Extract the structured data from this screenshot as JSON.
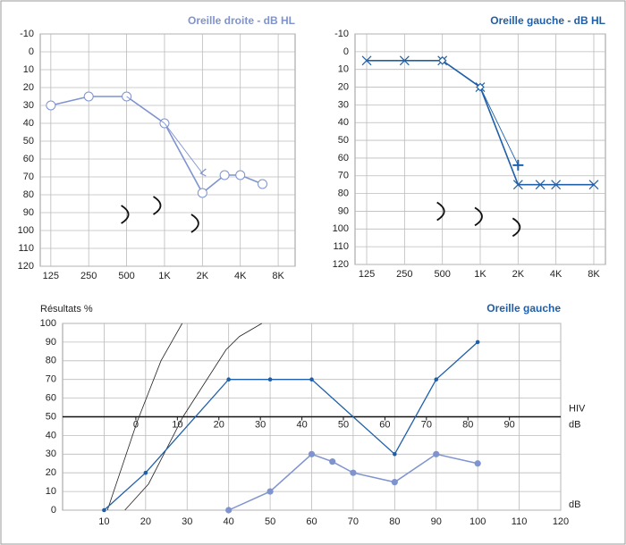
{
  "chart_data": [
    {
      "type": "line",
      "title": "Oreille droite - dB HL",
      "title_color": "#7f93cf",
      "xscale": "log",
      "xlim": [
        103,
        10900
      ],
      "xticks": [
        125,
        250,
        500,
        {
          "value": 1000,
          "label": "1K"
        },
        {
          "value": 2000,
          "label": "2K"
        },
        {
          "value": 4000,
          "label": "4K"
        },
        {
          "value": 8000,
          "label": "8K"
        }
      ],
      "ylim": [
        -10,
        120
      ],
      "yreverse": true,
      "yticks": [
        -10,
        0,
        10,
        20,
        30,
        40,
        50,
        60,
        70,
        80,
        90,
        100,
        110,
        120
      ],
      "grid": true,
      "series": [
        {
          "color": "#7f93cf",
          "x": [
            125,
            250,
            500,
            1000,
            2000,
            3000,
            4000,
            6000
          ],
          "values": [
            30,
            25,
            25,
            40,
            79,
            69,
            69,
            74
          ],
          "marker": "circle",
          "line": true,
          "width": 1.6
        },
        {
          "color": "#7f93cf",
          "x": [
            500,
            1000,
            2000
          ],
          "values": [
            25,
            40,
            68
          ],
          "markers": [
            "none",
            "none",
            "caret"
          ],
          "line": true,
          "width": 0.9
        },
        {
          "color": "#111111",
          "x": [
            500,
            900,
            1800
          ],
          "values": [
            91,
            86,
            96
          ],
          "marker": "arc",
          "line": false
        }
      ]
    },
    {
      "type": "line",
      "title": "Oreille gauche - dB HL",
      "title_color": "#1f5fa8",
      "xscale": "log",
      "xlim": [
        101,
        9900
      ],
      "xticks": [
        125,
        250,
        500,
        {
          "value": 1000,
          "label": "1K"
        },
        {
          "value": 2000,
          "label": "2K"
        },
        {
          "value": 4000,
          "label": "4K"
        },
        {
          "value": 8000,
          "label": "8K"
        }
      ],
      "ylim": [
        -10,
        120
      ],
      "yreverse": true,
      "yticks": [
        -10,
        0,
        10,
        20,
        30,
        40,
        50,
        60,
        70,
        80,
        90,
        100,
        110,
        120
      ],
      "grid": true,
      "series": [
        {
          "color": "#1f5fa8",
          "x": [
            125,
            250,
            500,
            1000,
            2000,
            3000,
            4000,
            8000
          ],
          "values": [
            5,
            5,
            5,
            20,
            75,
            75,
            75,
            75
          ],
          "marker": "x",
          "line": true,
          "width": 1.6
        },
        {
          "color": "#1f5fa8",
          "x": [
            500,
            1000,
            2000
          ],
          "values": [
            5,
            20,
            64
          ],
          "markers": [
            "diamond",
            "diamond",
            "plus"
          ],
          "line": true,
          "width": 0.9
        },
        {
          "color": "#111111",
          "x": [
            500,
            1000,
            2000
          ],
          "values": [
            90,
            93,
            99
          ],
          "marker": "arc",
          "line": false
        }
      ]
    },
    {
      "type": "line",
      "title": "Oreille gauche",
      "title_color": "#1f5fa8",
      "ylabel": "Résultats %",
      "xlabel": "dB",
      "x2label": [
        "HIV",
        "dB"
      ],
      "xlim": [
        0,
        120
      ],
      "xticks": [
        10,
        20,
        30,
        40,
        50,
        60,
        70,
        80,
        90,
        100,
        110,
        120
      ],
      "ylim": [
        0,
        100
      ],
      "yticks": [
        0,
        10,
        20,
        30,
        40,
        50,
        60,
        70,
        80,
        90,
        100
      ],
      "grid": true,
      "x2lim": [
        -17.65,
        102.35
      ],
      "x2ticks": [
        0,
        10,
        20,
        30,
        40,
        50,
        60,
        70,
        80,
        90
      ],
      "x2_axis_at": 50,
      "series": [
        {
          "color": "#222222",
          "x": [
            10.8,
            17.9,
            23.7,
            28.8
          ],
          "values": [
            0,
            47,
            80,
            100
          ],
          "marker": "none",
          "line": true,
          "width": 0.8
        },
        {
          "color": "#222222",
          "x": [
            15,
            20.7,
            29,
            39.4,
            42.6,
            48
          ],
          "values": [
            0,
            14,
            50,
            86,
            93,
            100
          ],
          "marker": "none",
          "line": true,
          "width": 0.8
        },
        {
          "color": "#1f5fa8",
          "x": [
            10,
            20,
            40,
            50,
            60,
            80,
            90,
            100
          ],
          "values": [
            0,
            20,
            70,
            70,
            70,
            30,
            70,
            90
          ],
          "marker": "dot",
          "line": true,
          "width": 1.3
        },
        {
          "color": "#7f93cf",
          "x": [
            40,
            50,
            60,
            65,
            70,
            80,
            90,
            100
          ],
          "values": [
            0,
            10,
            30,
            26,
            20,
            15,
            30,
            25
          ],
          "marker": "filled",
          "line": true,
          "width": 1.5
        }
      ]
    }
  ]
}
